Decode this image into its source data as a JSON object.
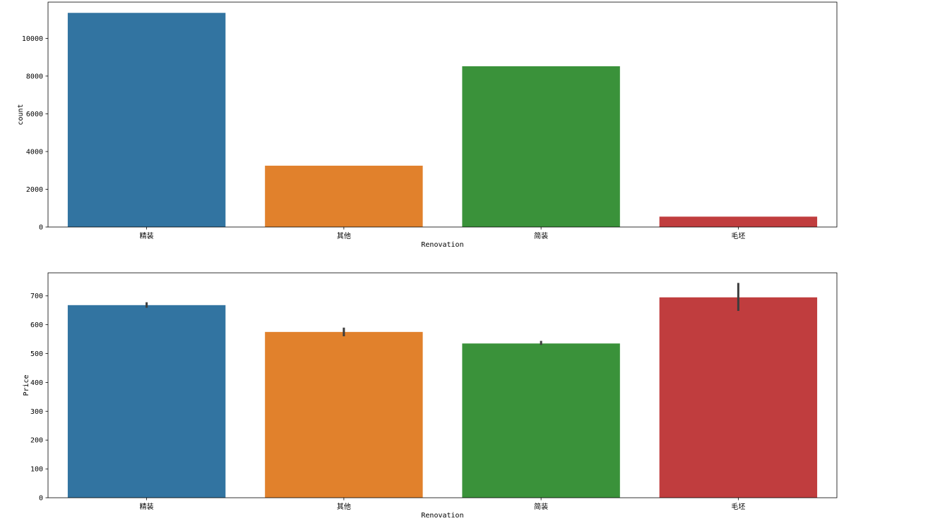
{
  "chart_data": [
    {
      "type": "bar",
      "categories": [
        "精装",
        "其他",
        "简装",
        "毛坯"
      ],
      "values": [
        11350,
        3250,
        8520,
        550
      ],
      "colors": [
        "#3274a1",
        "#e1812c",
        "#3a923a",
        "#c03d3e"
      ],
      "title": "",
      "xlabel": "Renovation",
      "ylabel": "count",
      "ylim": [
        0,
        11920
      ],
      "yticks": [
        0,
        2000,
        4000,
        6000,
        8000,
        10000
      ],
      "grid": false
    },
    {
      "type": "bar",
      "categories": [
        "精装",
        "其他",
        "简装",
        "毛坯"
      ],
      "values": [
        668,
        575,
        535,
        695
      ],
      "error_bars": [
        [
          659,
          678
        ],
        [
          560,
          590
        ],
        [
          530,
          544
        ],
        [
          648,
          745
        ]
      ],
      "colors": [
        "#3274a1",
        "#e1812c",
        "#3a923a",
        "#c03d3e"
      ],
      "title": "",
      "xlabel": "Renovation",
      "ylabel": "Price",
      "ylim": [
        0,
        780
      ],
      "yticks": [
        0,
        100,
        200,
        300,
        400,
        500,
        600,
        700
      ],
      "grid": false
    }
  ]
}
